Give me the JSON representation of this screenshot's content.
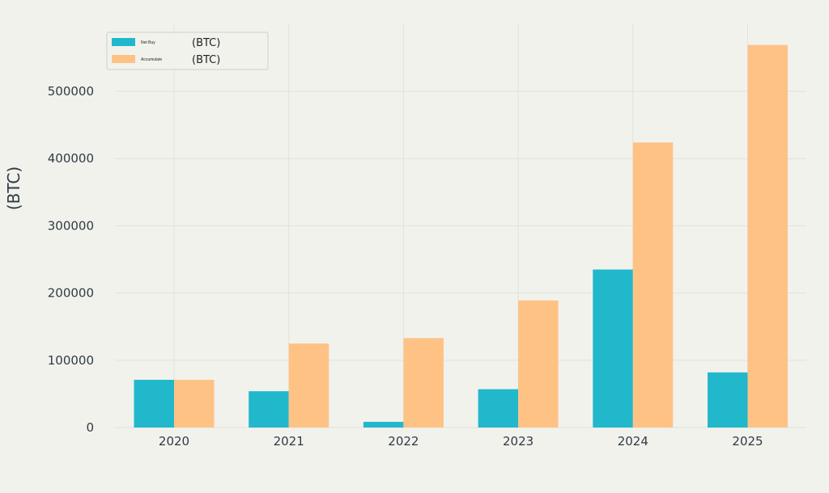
{
  "chart_data": {
    "type": "bar",
    "categories": [
      "2020",
      "2021",
      "2022",
      "2023",
      "2024",
      "2025"
    ],
    "series": [
      {
        "name": "Net Buy",
        "unit_label": "(BTC)",
        "color": "#22b8cc",
        "values": [
          71000,
          54000,
          8500,
          57000,
          235000,
          82000
        ]
      },
      {
        "name": "Accumulate",
        "unit_label": "(BTC)",
        "color": "#ffc285",
        "values": [
          71000,
          125000,
          133000,
          189000,
          424000,
          569000
        ]
      }
    ],
    "yticks": [
      0,
      100000,
      200000,
      300000,
      400000,
      500000
    ],
    "ylim": [
      0,
      600000
    ],
    "ylabel": "(BTC)",
    "xlabel": "",
    "title": "",
    "grid": true,
    "legend_position": "top-left"
  },
  "colors": {
    "background": "#f2f2ed",
    "text": "#2f3b45"
  }
}
